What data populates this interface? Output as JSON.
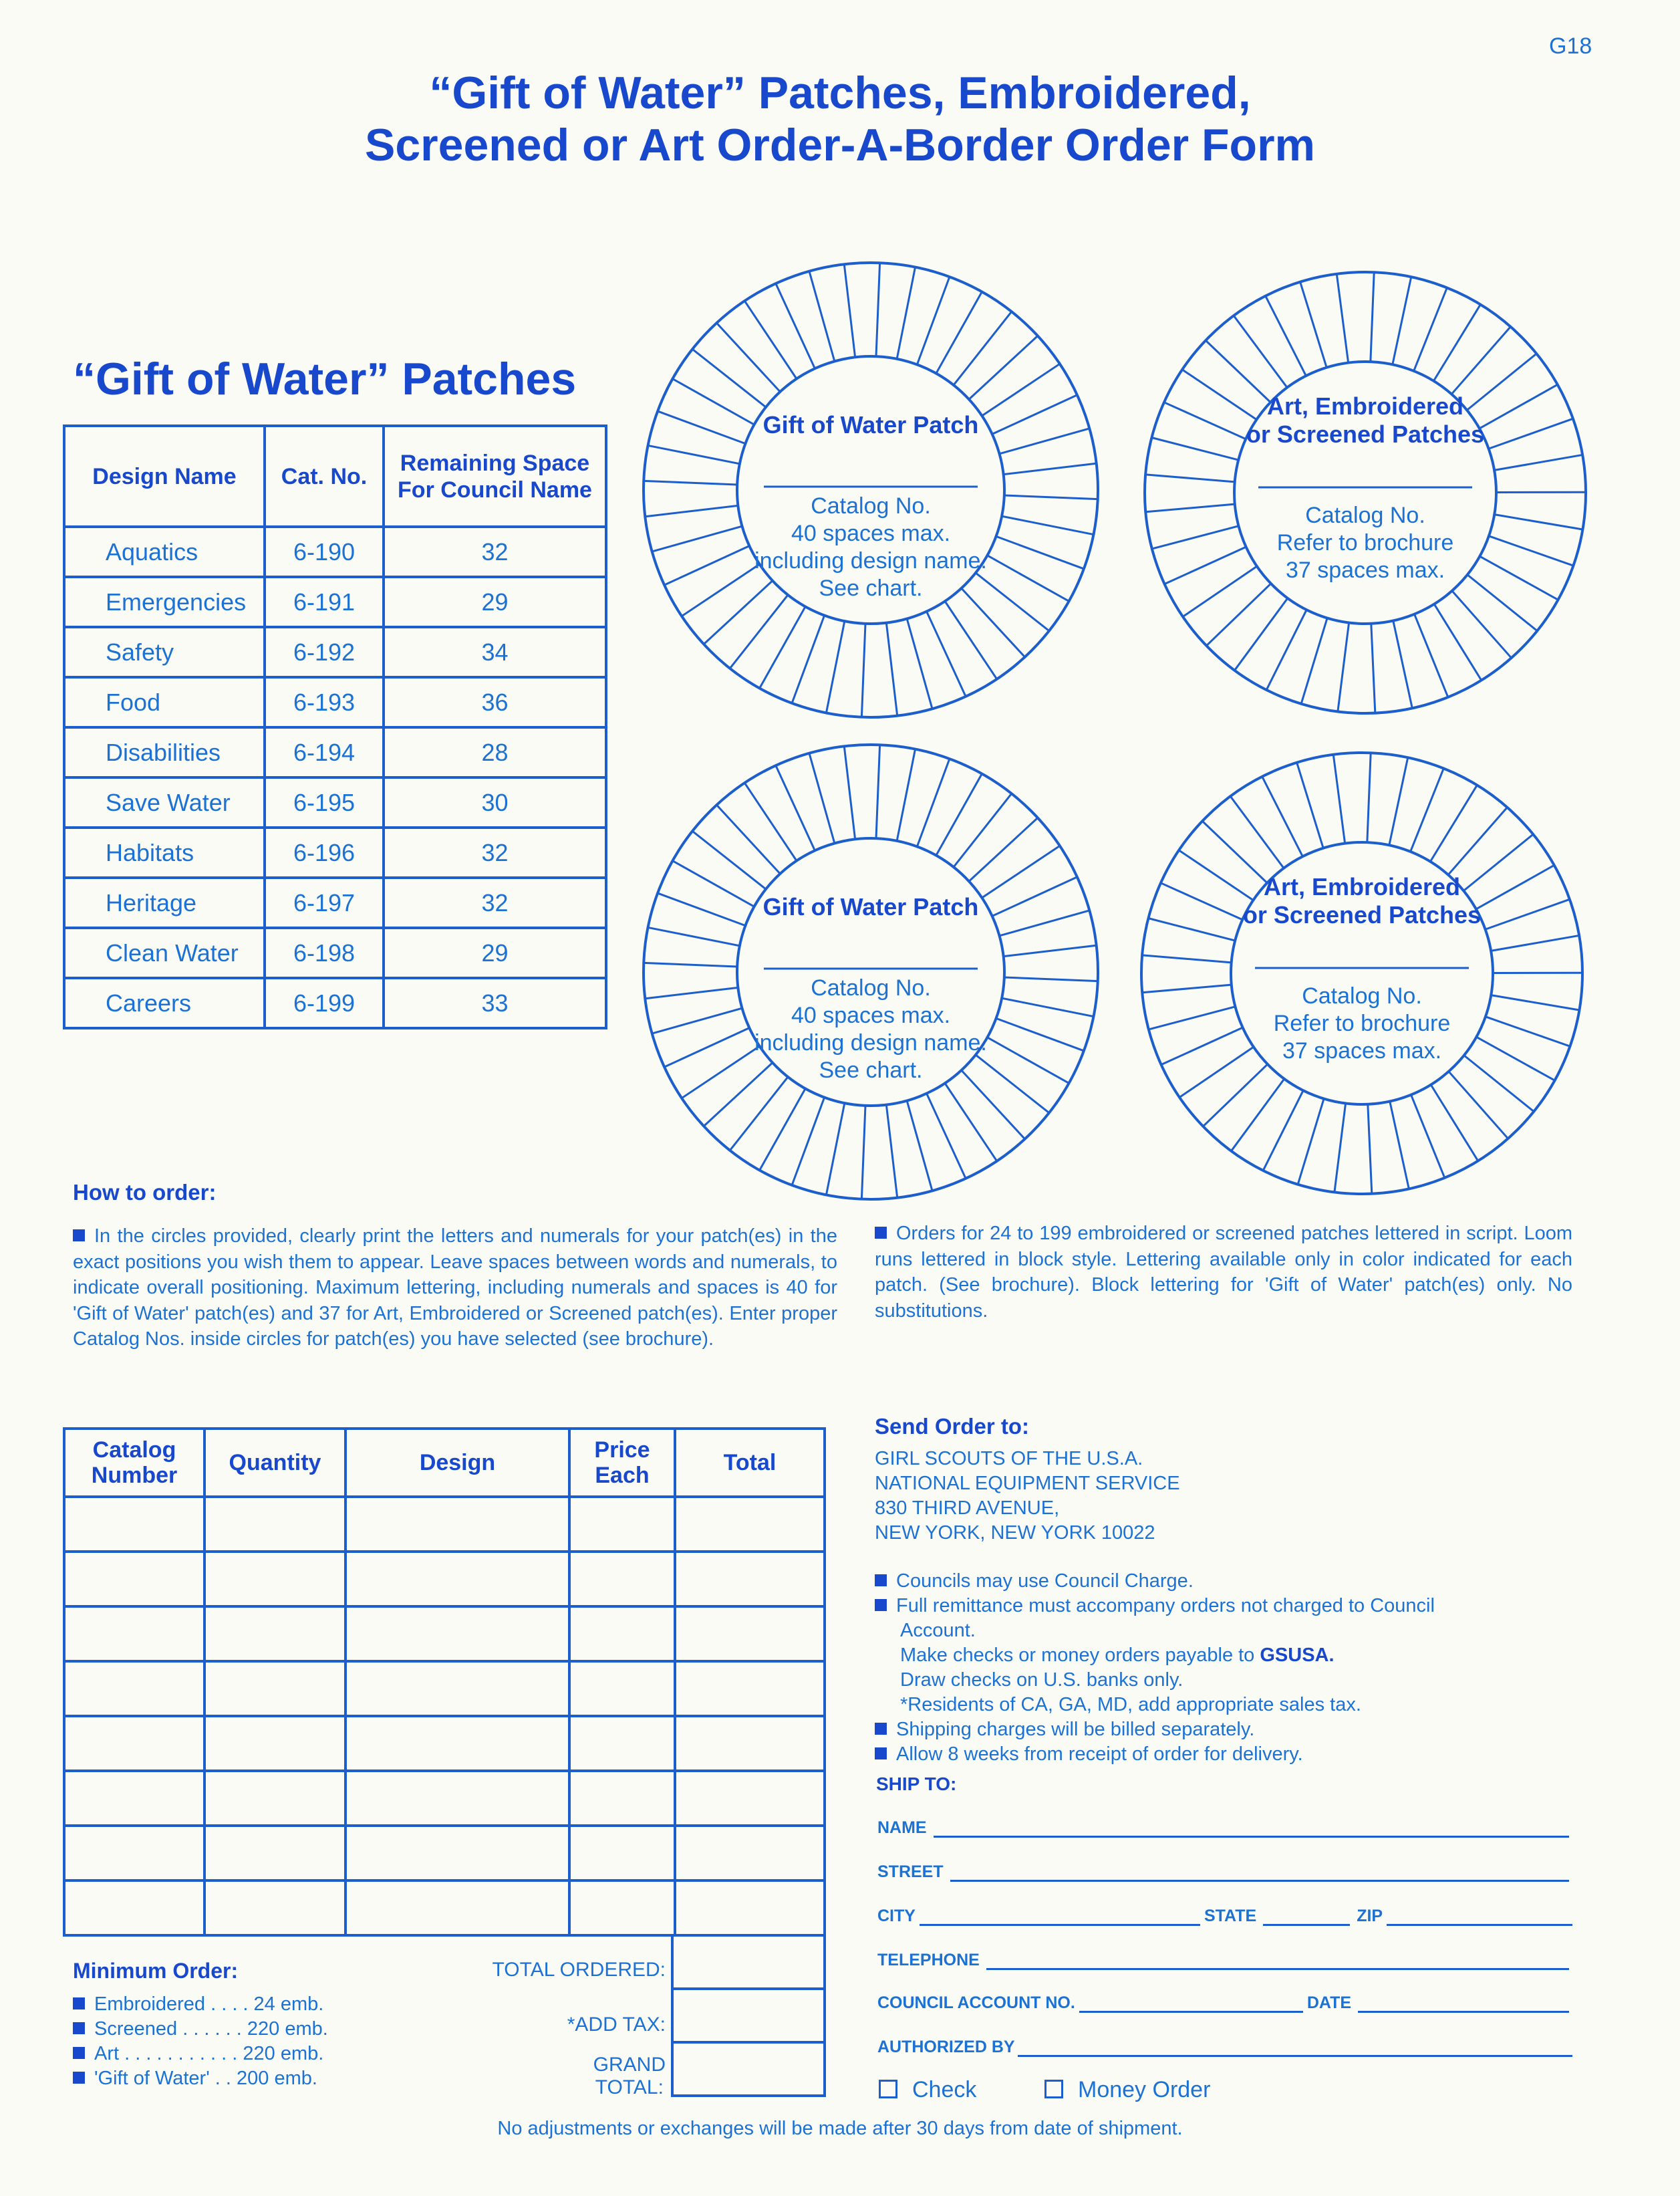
{
  "page_id": "G18",
  "title": {
    "line1": "“Gift of Water” Patches, Embroidered,",
    "line2": "Screened or Art Order-A-Border Order Form"
  },
  "patches": {
    "heading": "“Gift of Water” Patches",
    "headers": [
      "Design Name",
      "Cat. No.",
      "Remaining Space For Council Name"
    ],
    "rows": [
      [
        "Aquatics",
        "6-190",
        "32"
      ],
      [
        "Emergencies",
        "6-191",
        "29"
      ],
      [
        "Safety",
        "6-192",
        "34"
      ],
      [
        "Food",
        "6-193",
        "36"
      ],
      [
        "Disabilities",
        "6-194",
        "28"
      ],
      [
        "Save Water",
        "6-195",
        "30"
      ],
      [
        "Habitats",
        "6-196",
        "32"
      ],
      [
        "Heritage",
        "6-197",
        "32"
      ],
      [
        "Clean Water",
        "6-198",
        "29"
      ],
      [
        "Careers",
        "6-199",
        "33"
      ]
    ]
  },
  "circles": {
    "gift": {
      "title": "Gift of Water Patch",
      "l1": "Catalog No.",
      "l2": "40 spaces max.",
      "l3": "including design name.",
      "l4": "See chart.",
      "spaces": 40
    },
    "art": {
      "title1": "Art, Embroidered",
      "title2": "or Screened Patches",
      "l1": "Catalog No.",
      "l2": "Refer to brochure",
      "l3": "37 spaces max.",
      "spaces": 37
    }
  },
  "how_to_order": {
    "heading": "How to order:",
    "p1": "In the circles provided, clearly print the letters and numerals for your patch(es) in the exact positions you wish them to appear. Leave spaces between words and numerals, to indicate overall positioning. Maximum lettering, including numerals and spaces is 40 for 'Gift of Water' patch(es) and 37 for Art, Embroidered or Screened patch(es). Enter proper Catalog Nos. inside circles for patch(es) you have selected (see brochure).",
    "p2": "Orders for 24 to 199 embroidered or screened patches lettered in script. Loom runs lettered in block style. Lettering available only in color indicated for each patch. (See brochure). Block lettering for 'Gift of Water' patch(es) only. No substitutions."
  },
  "order_table": {
    "headers": [
      "Catalog Number",
      "Quantity",
      "Design",
      "Price Each",
      "Total"
    ],
    "total_ordered": "TOTAL ORDERED:",
    "add_tax": "*ADD TAX:",
    "grand_total1": "GRAND",
    "grand_total2": "TOTAL:"
  },
  "minimum": {
    "heading": "Minimum Order:",
    "items": [
      "Embroidered . . . . 24 emb.",
      "Screened . . . . . . 220 emb.",
      "Art . . . . . . . . . . . 220 emb.",
      "'Gift of Water' . . 200 emb."
    ]
  },
  "send": {
    "heading": "Send Order to:",
    "address": [
      "GIRL SCOUTS OF THE U.S.A.",
      "NATIONAL EQUIPMENT SERVICE",
      "830 THIRD AVENUE,",
      "NEW YORK, NEW YORK 10022"
    ],
    "b1": "Councils may use Council Charge.",
    "b2a": "Full remittance must accompany orders not charged to Council",
    "b2b": "Account.",
    "b2c": "Make checks or money orders payable to",
    "b2c_bold": "GSUSA.",
    "b2d": "Draw checks on U.S. banks only.",
    "b2e": "*Residents of CA, GA, MD, add appropriate sales tax.",
    "b3": "Shipping charges will be billed separately.",
    "b4": "Allow 8 weeks from receipt of order for delivery."
  },
  "ship_to": {
    "heading": "SHIP TO:",
    "name": "NAME",
    "street": "STREET",
    "city": "CITY",
    "state": "STATE",
    "zip": "ZIP",
    "telephone": "TELEPHONE",
    "account": "COUNCIL ACCOUNT NO.",
    "date": "DATE",
    "authorized": "AUTHORIZED BY",
    "check": "Check",
    "money_order": "Money Order"
  },
  "footer": "No adjustments or exchanges will be made after 30 days from date of shipment."
}
